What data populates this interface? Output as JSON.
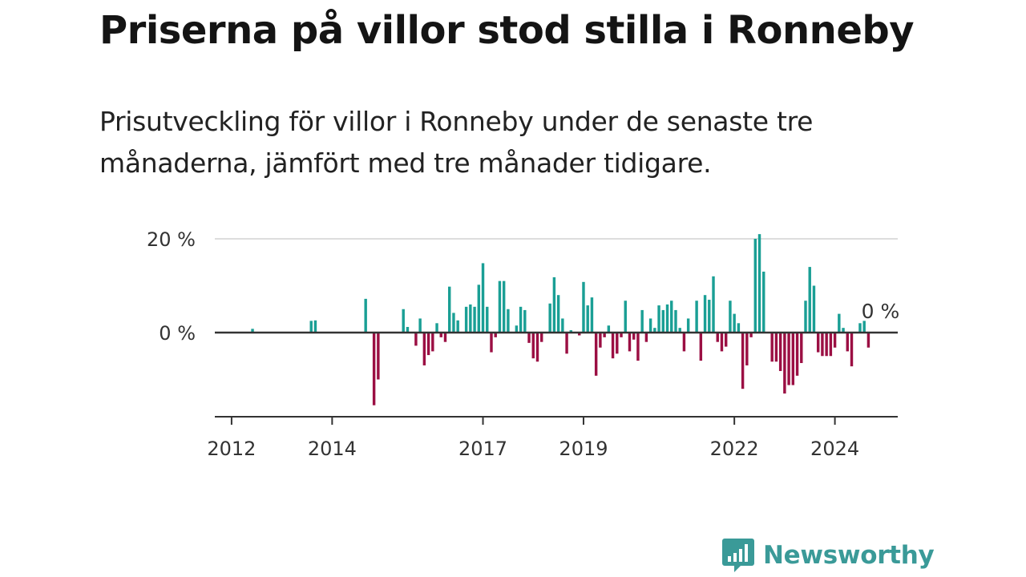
{
  "title": "Priserna på villor stod stilla i Ronneby",
  "subtitle": "Prisutveckling för villor i Ronneby under de senaste tre månaderna, jämfört med tre månader tidigare.",
  "brand": {
    "name": "Newsworthy",
    "icon": "newsworthy-logo-icon",
    "color": "#3a9a98"
  },
  "colors": {
    "positive": "#1a9f95",
    "negative": "#9b0f43",
    "grid": "#dddddd",
    "axis": "#333333"
  },
  "chart_data": {
    "type": "bar",
    "title": "Priserna på villor stod stilla i Ronneby",
    "subtitle": "Prisutveckling för villor i Ronneby under de senaste tre månaderna, jämfört med tre månader tidigare.",
    "xlabel": "",
    "ylabel": "",
    "ylim": [
      -18,
      21
    ],
    "x_range": [
      "2011-09",
      "2025-04"
    ],
    "y_ticks": [
      {
        "value": 0,
        "label": "0 %"
      },
      {
        "value": 20,
        "label": "20 %"
      }
    ],
    "x_ticks": [
      {
        "date": "2012-01",
        "label": "2012"
      },
      {
        "date": "2014-01",
        "label": "2014"
      },
      {
        "date": "2017-01",
        "label": "2017"
      },
      {
        "date": "2019-01",
        "label": "2019"
      },
      {
        "date": "2022-01",
        "label": "2022"
      },
      {
        "date": "2024-01",
        "label": "2024"
      }
    ],
    "last_value_label": "0 %",
    "grid": true,
    "series": [
      {
        "points": [
          [
            "2012-06",
            0.8
          ],
          [
            "2013-08",
            2.5
          ],
          [
            "2013-09",
            2.6
          ],
          [
            "2014-09",
            7.2
          ],
          [
            "2014-11",
            -15.5
          ],
          [
            "2014-12",
            -10
          ],
          [
            "2015-06",
            5
          ],
          [
            "2015-07",
            1.2
          ],
          [
            "2015-08",
            0
          ],
          [
            "2015-09",
            -2.8
          ],
          [
            "2015-10",
            3
          ],
          [
            "2015-11",
            -7
          ],
          [
            "2015-12",
            -4.8
          ],
          [
            "2016-01",
            -4
          ],
          [
            "2016-02",
            2
          ],
          [
            "2016-03",
            -1
          ],
          [
            "2016-04",
            -2
          ],
          [
            "2016-05",
            9.8
          ],
          [
            "2016-06",
            4.2
          ],
          [
            "2016-07",
            2.6
          ],
          [
            "2016-08",
            0
          ],
          [
            "2016-09",
            5.5
          ],
          [
            "2016-10",
            6
          ],
          [
            "2016-11",
            5.5
          ],
          [
            "2016-12",
            10.2
          ],
          [
            "2017-01",
            14.8
          ],
          [
            "2017-02",
            5.5
          ],
          [
            "2017-03",
            -4.2
          ],
          [
            "2017-04",
            -1
          ],
          [
            "2017-05",
            11
          ],
          [
            "2017-06",
            11
          ],
          [
            "2017-07",
            5
          ],
          [
            "2017-08",
            0
          ],
          [
            "2017-09",
            1.5
          ],
          [
            "2017-10",
            5.5
          ],
          [
            "2017-11",
            4.8
          ],
          [
            "2017-12",
            -2.2
          ],
          [
            "2018-01",
            -5.5
          ],
          [
            "2018-02",
            -6.2
          ],
          [
            "2018-03",
            -2
          ],
          [
            "2018-04",
            0
          ],
          [
            "2018-05",
            6.2
          ],
          [
            "2018-06",
            11.8
          ],
          [
            "2018-07",
            8
          ],
          [
            "2018-08",
            3
          ],
          [
            "2018-09",
            -4.5
          ],
          [
            "2018-10",
            0.5
          ],
          [
            "2018-11",
            0
          ],
          [
            "2018-12",
            -0.6
          ],
          [
            "2019-01",
            10.8
          ],
          [
            "2019-02",
            5.8
          ],
          [
            "2019-03",
            7.5
          ],
          [
            "2019-04",
            -9.2
          ],
          [
            "2019-05",
            -3.2
          ],
          [
            "2019-06",
            -1
          ],
          [
            "2019-07",
            1.5
          ],
          [
            "2019-08",
            -5.5
          ],
          [
            "2019-09",
            -4.5
          ],
          [
            "2019-10",
            -1
          ],
          [
            "2019-11",
            6.8
          ],
          [
            "2019-12",
            -4
          ],
          [
            "2020-01",
            -1.5
          ],
          [
            "2020-02",
            -6
          ],
          [
            "2020-03",
            4.8
          ],
          [
            "2020-04",
            -2
          ],
          [
            "2020-05",
            3
          ],
          [
            "2020-06",
            1
          ],
          [
            "2020-07",
            5.8
          ],
          [
            "2020-08",
            4.8
          ],
          [
            "2020-09",
            6
          ],
          [
            "2020-10",
            6.8
          ],
          [
            "2020-11",
            4.8
          ],
          [
            "2020-12",
            1
          ],
          [
            "2021-01",
            -4
          ],
          [
            "2021-02",
            3
          ],
          [
            "2021-03",
            0
          ],
          [
            "2021-04",
            6.8
          ],
          [
            "2021-05",
            -6
          ],
          [
            "2021-06",
            8
          ],
          [
            "2021-07",
            7
          ],
          [
            "2021-08",
            12
          ],
          [
            "2021-09",
            -2
          ],
          [
            "2021-10",
            -4
          ],
          [
            "2021-11",
            -3
          ],
          [
            "2021-12",
            6.8
          ],
          [
            "2022-01",
            4
          ],
          [
            "2022-02",
            2
          ],
          [
            "2022-03",
            -12
          ],
          [
            "2022-04",
            -7
          ],
          [
            "2022-05",
            -1
          ],
          [
            "2022-06",
            20
          ],
          [
            "2022-07",
            21
          ],
          [
            "2022-08",
            13
          ],
          [
            "2022-09",
            0
          ],
          [
            "2022-10",
            -6.2
          ],
          [
            "2022-11",
            -6.2
          ],
          [
            "2022-12",
            -8.2
          ],
          [
            "2023-01",
            -13
          ],
          [
            "2023-02",
            -11.2
          ],
          [
            "2023-03",
            -11.2
          ],
          [
            "2023-04",
            -9.2
          ],
          [
            "2023-05",
            -6.5
          ],
          [
            "2023-06",
            6.8
          ],
          [
            "2023-07",
            14
          ],
          [
            "2023-08",
            10
          ],
          [
            "2023-09",
            -4.2
          ],
          [
            "2023-10",
            -5
          ],
          [
            "2023-11",
            -5
          ],
          [
            "2023-12",
            -5
          ],
          [
            "2024-01",
            -3.2
          ],
          [
            "2024-02",
            4
          ],
          [
            "2024-03",
            1
          ],
          [
            "2024-04",
            -4
          ],
          [
            "2024-05",
            -7.2
          ],
          [
            "2024-06",
            0
          ],
          [
            "2024-07",
            2
          ],
          [
            "2024-08",
            2.5
          ],
          [
            "2024-09",
            -3.2
          ],
          [
            "2024-10",
            0
          ]
        ]
      }
    ]
  }
}
